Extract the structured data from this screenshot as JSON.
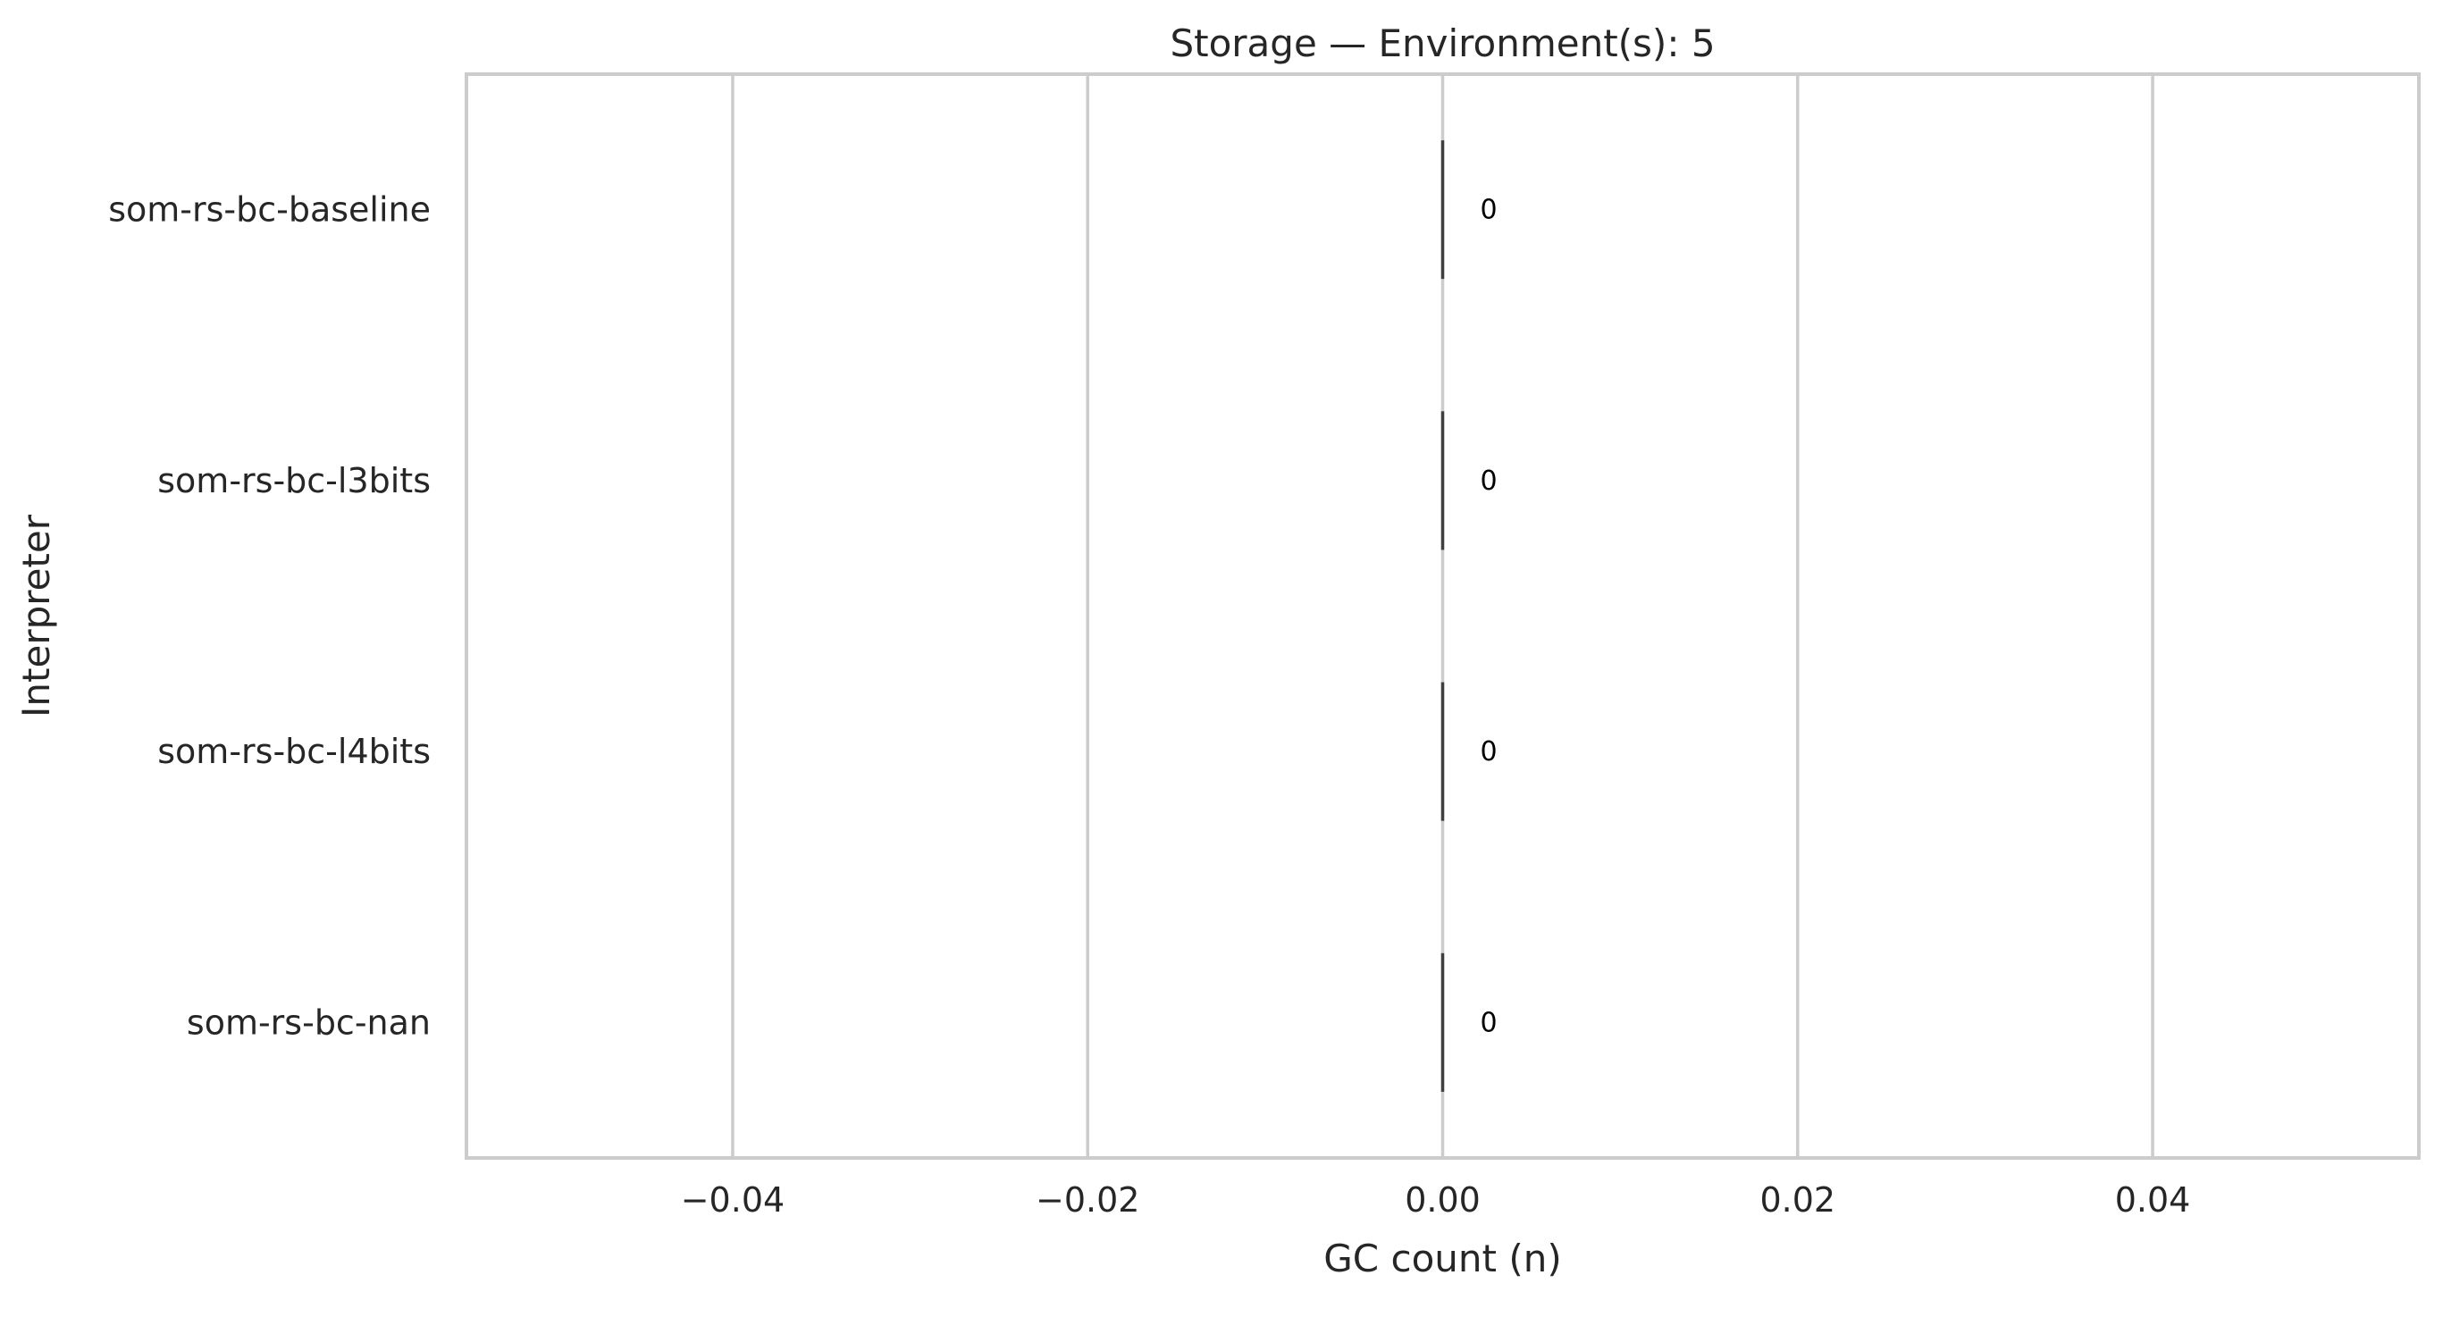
{
  "chart_data": {
    "type": "bar",
    "orientation": "horizontal",
    "title": "Storage — Environment(s): 5",
    "xlabel": "GC count (n)",
    "ylabel": "Interpreter",
    "categories": [
      "som-rs-bc-baseline",
      "som-rs-bc-l3bits",
      "som-rs-bc-l4bits",
      "som-rs-bc-nan"
    ],
    "values": [
      0,
      0,
      0,
      0
    ],
    "data_labels": [
      "0",
      "0",
      "0",
      "0"
    ],
    "xlim": [
      -0.055,
      0.055
    ],
    "xticks": [
      -0.04,
      -0.02,
      0.0,
      0.02,
      0.04
    ],
    "xtick_labels": [
      "−0.04",
      "−0.02",
      "0.00",
      "0.02",
      "0.04"
    ],
    "grid": "vertical",
    "colors": {
      "background": "#ffffff",
      "grid": "#cccccc",
      "spine": "#cccccc",
      "bar_edge": "#3f3f3f",
      "text": "#262626",
      "data_label": "#000000"
    }
  }
}
